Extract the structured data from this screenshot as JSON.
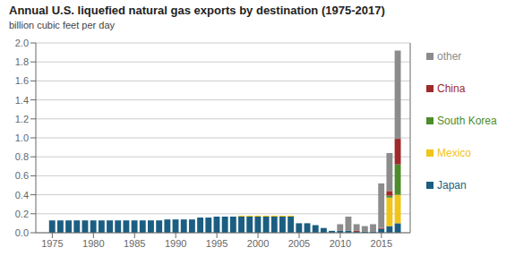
{
  "chart_data": {
    "type": "bar",
    "title": "Annual U.S. liquefied natural gas exports by destination (1975-2017)",
    "y_label": "billion cubic feet per day",
    "stacked": true,
    "grid": true,
    "x": [
      1975,
      1976,
      1977,
      1978,
      1979,
      1980,
      1981,
      1982,
      1983,
      1984,
      1985,
      1986,
      1987,
      1988,
      1989,
      1990,
      1991,
      1992,
      1993,
      1994,
      1995,
      1996,
      1997,
      1998,
      1999,
      2000,
      2001,
      2002,
      2003,
      2004,
      2005,
      2006,
      2007,
      2008,
      2009,
      2010,
      2011,
      2012,
      2013,
      2014,
      2015,
      2016,
      2017
    ],
    "series": [
      {
        "name": "Japan",
        "color": "#1b5e82",
        "values": [
          0.13,
          0.13,
          0.13,
          0.13,
          0.13,
          0.13,
          0.13,
          0.13,
          0.13,
          0.13,
          0.13,
          0.13,
          0.13,
          0.13,
          0.14,
          0.14,
          0.14,
          0.14,
          0.16,
          0.16,
          0.17,
          0.17,
          0.17,
          0.17,
          0.17,
          0.17,
          0.17,
          0.17,
          0.17,
          0.17,
          0.1,
          0.1,
          0.08,
          0.05,
          0.02,
          0.02,
          0.02,
          0.01,
          0.01,
          0.01,
          0.04,
          0.07,
          0.1
        ]
      },
      {
        "name": "Mexico",
        "color": "#f0c419",
        "values": [
          0.0,
          0.0,
          0.0,
          0.0,
          0.0,
          0.0,
          0.0,
          0.0,
          0.0,
          0.0,
          0.0,
          0.0,
          0.0,
          0.0,
          0.0,
          0.0,
          0.0,
          0.0,
          0.0,
          0.0,
          0.0,
          0.0,
          0.0,
          0.01,
          0.01,
          0.01,
          0.01,
          0.01,
          0.01,
          0.01,
          0.0,
          0.0,
          0.0,
          0.0,
          0.0,
          0.0,
          0.0,
          0.0,
          0.0,
          0.0,
          0.0,
          0.3,
          0.3
        ]
      },
      {
        "name": "South Korea",
        "color": "#4c8c2b",
        "values": [
          0.0,
          0.0,
          0.0,
          0.0,
          0.0,
          0.0,
          0.0,
          0.0,
          0.0,
          0.0,
          0.0,
          0.0,
          0.0,
          0.0,
          0.0,
          0.0,
          0.0,
          0.0,
          0.0,
          0.0,
          0.0,
          0.0,
          0.0,
          0.0,
          0.0,
          0.0,
          0.0,
          0.0,
          0.0,
          0.0,
          0.0,
          0.0,
          0.0,
          0.0,
          0.0,
          0.0,
          0.0,
          0.0,
          0.0,
          0.0,
          0.0,
          0.02,
          0.32
        ]
      },
      {
        "name": "China",
        "color": "#9e2a2b",
        "values": [
          0.0,
          0.0,
          0.0,
          0.0,
          0.0,
          0.0,
          0.0,
          0.0,
          0.0,
          0.0,
          0.0,
          0.0,
          0.0,
          0.0,
          0.0,
          0.0,
          0.0,
          0.0,
          0.0,
          0.0,
          0.0,
          0.0,
          0.0,
          0.0,
          0.0,
          0.0,
          0.0,
          0.0,
          0.0,
          0.0,
          0.0,
          0.0,
          0.0,
          0.0,
          0.0,
          0.0,
          0.0,
          0.01,
          0.0,
          0.0,
          0.01,
          0.05,
          0.27
        ]
      },
      {
        "name": "other",
        "color": "#8c8c8c",
        "values": [
          0.0,
          0.0,
          0.0,
          0.0,
          0.0,
          0.0,
          0.0,
          0.0,
          0.0,
          0.0,
          0.0,
          0.0,
          0.0,
          0.0,
          0.0,
          0.0,
          0.0,
          0.0,
          0.0,
          0.0,
          0.0,
          0.0,
          0.0,
          0.0,
          0.0,
          0.0,
          0.0,
          0.0,
          0.0,
          0.0,
          0.0,
          0.0,
          0.0,
          0.0,
          0.0,
          0.07,
          0.15,
          0.07,
          0.06,
          0.08,
          0.47,
          0.4,
          0.93
        ]
      }
    ],
    "xlim": [
      1973,
      2018.5
    ],
    "xticks": [
      1975,
      1980,
      1985,
      1990,
      1995,
      2000,
      2005,
      2010,
      2015
    ],
    "ylim": [
      0,
      2.0
    ],
    "yticks": [
      {
        "value": 0.0,
        "label": "0.0"
      },
      0.2,
      0.4,
      0.6,
      0.8,
      {
        "value": 1.0,
        "label": "1.0"
      },
      1.2,
      1.4,
      1.6,
      1.8,
      {
        "value": 2.0,
        "label": "2.0"
      }
    ]
  }
}
